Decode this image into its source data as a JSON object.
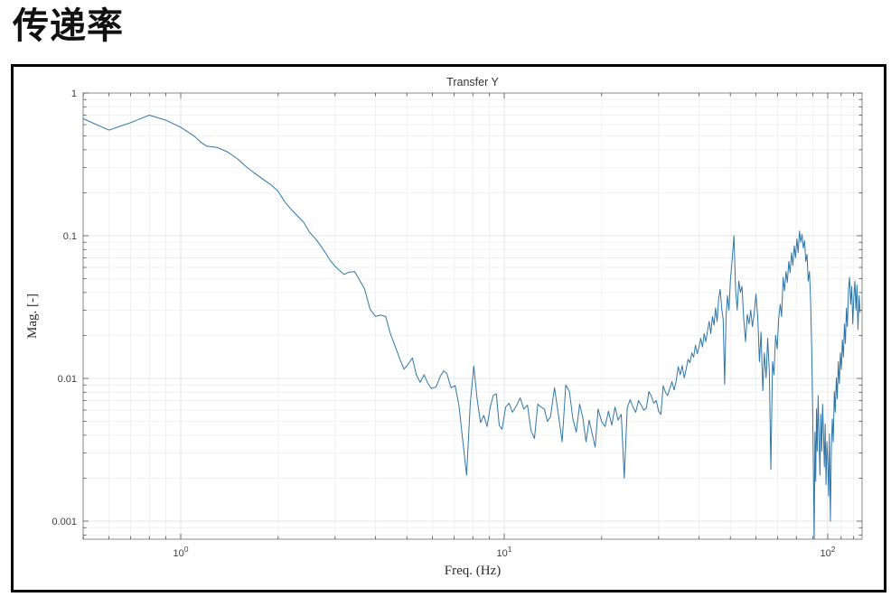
{
  "page": {
    "title": "传递率"
  },
  "figure": {
    "background": "#ffffff",
    "border_color": "#000000"
  },
  "chart": {
    "title": "Transfer Y",
    "xlabel": "Freq. (Hz)",
    "ylabel": "Mag. [-]",
    "line_color": "#2f76a7",
    "axis_box_color": "#8a8a8a",
    "tick_color": "#4d4d4d",
    "tick_label_color": "#3d3d3d",
    "grid_major_color": "#e4e4e4",
    "grid_minor_color": "#f0f0f0",
    "x_tick_labels": [
      {
        "value": 1,
        "base": "10",
        "exp": "0"
      },
      {
        "value": 10,
        "base": "10",
        "exp": "1"
      },
      {
        "value": 100,
        "base": "10",
        "exp": "2"
      }
    ],
    "y_tick_labels": [
      {
        "value": 1,
        "label": "1"
      },
      {
        "value": 0.1,
        "label": "0.1"
      },
      {
        "value": 0.01,
        "label": "0.01"
      },
      {
        "value": 0.001,
        "label": "0.001"
      }
    ]
  },
  "chart_data": {
    "type": "line",
    "title": "Transfer Y",
    "xlabel": "Freq. (Hz)",
    "ylabel": "Mag. [-]",
    "x_scale": "log",
    "y_scale": "log",
    "xlim": [
      0.5,
      126
    ],
    "ylim": [
      0.00075,
      1
    ],
    "grid": true,
    "legend": false,
    "series": [
      {
        "name": "Transfer Y",
        "color": "#2f76a7",
        "points": [
          [
            0.5,
            0.66
          ],
          [
            0.6,
            0.55
          ],
          [
            0.7,
            0.62
          ],
          [
            0.8,
            0.7
          ],
          [
            0.9,
            0.645
          ],
          [
            1.0,
            0.575
          ],
          [
            1.1,
            0.5
          ],
          [
            1.15,
            0.455
          ],
          [
            1.2,
            0.425
          ],
          [
            1.3,
            0.415
          ],
          [
            1.4,
            0.385
          ],
          [
            1.5,
            0.345
          ],
          [
            1.6,
            0.302
          ],
          [
            1.7,
            0.272
          ],
          [
            1.8,
            0.248
          ],
          [
            1.9,
            0.228
          ],
          [
            2.0,
            0.205
          ],
          [
            2.1,
            0.172
          ],
          [
            2.2,
            0.152
          ],
          [
            2.3,
            0.137
          ],
          [
            2.4,
            0.124
          ],
          [
            2.5,
            0.106
          ],
          [
            2.6,
            0.096
          ],
          [
            2.7,
            0.086
          ],
          [
            2.8,
            0.076
          ],
          [
            2.9,
            0.067
          ],
          [
            3.0,
            0.061
          ],
          [
            3.1,
            0.057
          ],
          [
            3.2,
            0.0535
          ],
          [
            3.3,
            0.0555
          ],
          [
            3.45,
            0.056
          ],
          [
            3.55,
            0.05
          ],
          [
            3.7,
            0.0425
          ],
          [
            3.85,
            0.0305
          ],
          [
            4.0,
            0.0272
          ],
          [
            4.15,
            0.0278
          ],
          [
            4.3,
            0.0272
          ],
          [
            4.45,
            0.0205
          ],
          [
            4.6,
            0.0168
          ],
          [
            4.75,
            0.0138
          ],
          [
            4.9,
            0.0116
          ],
          [
            5.05,
            0.0126
          ],
          [
            5.2,
            0.0139
          ],
          [
            5.35,
            0.0106
          ],
          [
            5.5,
            0.0094
          ],
          [
            5.65,
            0.0106
          ],
          [
            5.8,
            0.0093
          ],
          [
            5.95,
            0.0085
          ],
          [
            6.15,
            0.0087
          ],
          [
            6.35,
            0.0104
          ],
          [
            6.5,
            0.0113
          ],
          [
            6.65,
            0.0108
          ],
          [
            6.85,
            0.0086
          ],
          [
            7.05,
            0.0089
          ],
          [
            7.25,
            0.0064
          ],
          [
            7.45,
            0.0036
          ],
          [
            7.65,
            0.0021
          ],
          [
            7.85,
            0.0066
          ],
          [
            8.05,
            0.0122
          ],
          [
            8.25,
            0.0071
          ],
          [
            8.45,
            0.0049
          ],
          [
            8.65,
            0.0055
          ],
          [
            8.85,
            0.0046
          ],
          [
            9.05,
            0.0063
          ],
          [
            9.25,
            0.0076
          ],
          [
            9.45,
            0.0078
          ],
          [
            9.65,
            0.0047
          ],
          [
            9.85,
            0.0044
          ],
          [
            10.1,
            0.0063
          ],
          [
            10.35,
            0.0067
          ],
          [
            10.6,
            0.0058
          ],
          [
            10.9,
            0.0064
          ],
          [
            11.2,
            0.0073
          ],
          [
            11.5,
            0.0061
          ],
          [
            11.8,
            0.0065
          ],
          [
            12.1,
            0.0043
          ],
          [
            12.4,
            0.0038
          ],
          [
            12.7,
            0.0066
          ],
          [
            13.0,
            0.0063
          ],
          [
            13.3,
            0.0061
          ],
          [
            13.6,
            0.005
          ],
          [
            13.9,
            0.0054
          ],
          [
            14.3,
            0.0086
          ],
          [
            14.7,
            0.0056
          ],
          [
            15.1,
            0.0036
          ],
          [
            15.5,
            0.009
          ],
          [
            15.9,
            0.0081
          ],
          [
            16.3,
            0.0052
          ],
          [
            16.7,
            0.0042
          ],
          [
            17.1,
            0.0066
          ],
          [
            17.5,
            0.0053
          ],
          [
            17.9,
            0.0036
          ],
          [
            18.3,
            0.0051
          ],
          [
            18.7,
            0.0041
          ],
          [
            19.1,
            0.0033
          ],
          [
            19.5,
            0.0061
          ],
          [
            20.0,
            0.005
          ],
          [
            20.5,
            0.0046
          ],
          [
            21.0,
            0.0059
          ],
          [
            21.5,
            0.0047
          ],
          [
            22.0,
            0.0063
          ],
          [
            22.5,
            0.0051
          ],
          [
            23.0,
            0.0056
          ],
          [
            23.5,
            0.002
          ],
          [
            24.0,
            0.0062
          ],
          [
            24.5,
            0.0071
          ],
          [
            25.0,
            0.0063
          ],
          [
            25.5,
            0.0058
          ],
          [
            26.0,
            0.007
          ],
          [
            26.5,
            0.0065
          ],
          [
            27.0,
            0.006
          ],
          [
            27.5,
            0.0062
          ],
          [
            28.0,
            0.0081
          ],
          [
            28.5,
            0.0075
          ],
          [
            29.0,
            0.0067
          ],
          [
            29.5,
            0.007
          ],
          [
            30.0,
            0.0059
          ],
          [
            30.5,
            0.0056
          ],
          [
            31.0,
            0.0089
          ],
          [
            31.5,
            0.008
          ],
          [
            32.0,
            0.0076
          ],
          [
            32.5,
            0.0085
          ],
          [
            33.0,
            0.0095
          ],
          [
            33.5,
            0.0083
          ],
          [
            34.0,
            0.0096
          ],
          [
            34.5,
            0.0121
          ],
          [
            35.0,
            0.0106
          ],
          [
            35.5,
            0.0123
          ],
          [
            36.0,
            0.0101
          ],
          [
            36.5,
            0.0116
          ],
          [
            37.0,
            0.0136
          ],
          [
            37.5,
            0.0129
          ],
          [
            38.0,
            0.0151
          ],
          [
            38.5,
            0.0141
          ],
          [
            39.0,
            0.0171
          ],
          [
            39.5,
            0.0149
          ],
          [
            40.0,
            0.0166
          ],
          [
            40.5,
            0.0191
          ],
          [
            41.0,
            0.0166
          ],
          [
            41.5,
            0.0206
          ],
          [
            42.0,
            0.0181
          ],
          [
            42.5,
            0.0216
          ],
          [
            43.0,
            0.0251
          ],
          [
            43.5,
            0.0206
          ],
          [
            44.0,
            0.0271
          ],
          [
            44.5,
            0.0236
          ],
          [
            45.0,
            0.0312
          ],
          [
            45.5,
            0.0251
          ],
          [
            46.0,
            0.0361
          ],
          [
            46.5,
            0.0421
          ],
          [
            47.0,
            0.0311
          ],
          [
            47.5,
            0.0261
          ],
          [
            48.0,
            0.0091
          ],
          [
            48.5,
            0.0271
          ],
          [
            49.0,
            0.0381
          ],
          [
            49.5,
            0.0301
          ],
          [
            50.0,
            0.0481
          ],
          [
            50.7,
            0.0701
          ],
          [
            51.3,
            0.1
          ],
          [
            51.9,
            0.0421
          ],
          [
            52.5,
            0.0301
          ],
          [
            53.1,
            0.0481
          ],
          [
            53.7,
            0.0401
          ],
          [
            54.3,
            0.0441
          ],
          [
            55.0,
            0.0261
          ],
          [
            55.7,
            0.0181
          ],
          [
            56.4,
            0.0281
          ],
          [
            57.1,
            0.0241
          ],
          [
            57.8,
            0.0301
          ],
          [
            58.5,
            0.0231
          ],
          [
            59.2,
            0.0281
          ],
          [
            60.0,
            0.0391
          ],
          [
            60.8,
            0.0261
          ],
          [
            61.5,
            0.0131
          ],
          [
            62.2,
            0.0211
          ],
          [
            63.0,
            0.0082
          ],
          [
            63.7,
            0.0151
          ],
          [
            64.5,
            0.0101
          ],
          [
            65.2,
            0.0191
          ],
          [
            66.0,
            0.0111
          ],
          [
            66.7,
            0.0023
          ],
          [
            67.5,
            0.0131
          ],
          [
            68.2,
            0.0106
          ],
          [
            69.0,
            0.0201
          ],
          [
            69.8,
            0.0161
          ],
          [
            70.5,
            0.0261
          ],
          [
            71.3,
            0.0331
          ],
          [
            72.0,
            0.0271
          ],
          [
            72.8,
            0.0511
          ],
          [
            73.5,
            0.0411
          ],
          [
            74.3,
            0.0561
          ],
          [
            75.0,
            0.0471
          ],
          [
            75.8,
            0.0661
          ],
          [
            76.5,
            0.0551
          ],
          [
            77.3,
            0.0761
          ],
          [
            78.0,
            0.0621
          ],
          [
            78.8,
            0.0851
          ],
          [
            79.5,
            0.0701
          ],
          [
            80.3,
            0.0951
          ],
          [
            81.0,
            0.0761
          ],
          [
            81.8,
            0.108
          ],
          [
            82.5,
            0.0901
          ],
          [
            83.3,
            0.1021
          ],
          [
            84.0,
            0.0821
          ],
          [
            84.8,
            0.0921
          ],
          [
            85.5,
            0.0661
          ],
          [
            86.3,
            0.0741
          ],
          [
            87.0,
            0.0481
          ],
          [
            87.8,
            0.0561
          ],
          [
            88.5,
            0.0351
          ],
          [
            89.2,
            0.0161
          ],
          [
            89.8,
            0.0061
          ],
          [
            90.3,
            0.0024
          ],
          [
            90.8,
            0.0007
          ],
          [
            91.3,
            0.0042
          ],
          [
            91.8,
            0.0019
          ],
          [
            92.3,
            0.0061
          ],
          [
            92.8,
            0.0031
          ],
          [
            93.4,
            0.0076
          ],
          [
            94.0,
            0.0038
          ],
          [
            94.6,
            0.0021
          ],
          [
            95.2,
            0.0056
          ],
          [
            95.8,
            0.0031
          ],
          [
            96.4,
            0.0066
          ],
          [
            97.0,
            0.0042
          ],
          [
            97.6,
            0.0024
          ],
          [
            98.2,
            0.0048
          ],
          [
            98.8,
            0.0018
          ],
          [
            99.4,
            0.0036
          ],
          [
            100.0,
            0.0026
          ],
          [
            100.6,
            0.0015
          ],
          [
            101.2,
            0.0041
          ],
          [
            101.9,
            0.001
          ],
          [
            102.6,
            0.0032
          ],
          [
            103.3,
            0.0052
          ],
          [
            104.0,
            0.0036
          ],
          [
            104.8,
            0.0081
          ],
          [
            105.5,
            0.0058
          ],
          [
            106.3,
            0.0101
          ],
          [
            107.0,
            0.0072
          ],
          [
            107.8,
            0.0131
          ],
          [
            108.6,
            0.0092
          ],
          [
            109.4,
            0.0151
          ],
          [
            110.2,
            0.0116
          ],
          [
            111.0,
            0.0186
          ],
          [
            111.8,
            0.0141
          ],
          [
            112.6,
            0.0241
          ],
          [
            113.4,
            0.0176
          ],
          [
            114.2,
            0.0311
          ],
          [
            115.0,
            0.0231
          ],
          [
            115.9,
            0.0421
          ],
          [
            116.8,
            0.0511
          ],
          [
            117.7,
            0.0331
          ],
          [
            118.6,
            0.0441
          ],
          [
            119.5,
            0.0241
          ],
          [
            120.4,
            0.0371
          ],
          [
            121.3,
            0.0481
          ],
          [
            122.2,
            0.0301
          ],
          [
            123.1,
            0.0451
          ],
          [
            124.0,
            0.0221
          ],
          [
            125.0,
            0.0381
          ],
          [
            125.9,
            0.0291
          ]
        ]
      }
    ]
  }
}
